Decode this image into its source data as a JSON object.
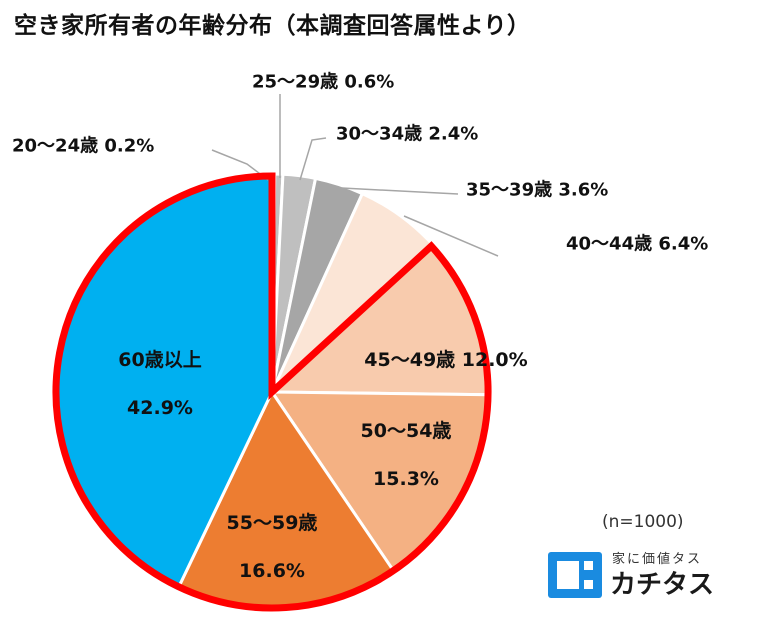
{
  "title": "空き家所有者の年齢分布（本調査回答属性より）",
  "note": "(n=1000)",
  "brand": {
    "tagline": "家に価値タス",
    "name": "カチタス",
    "color": "#1a8be0"
  },
  "chart_data": {
    "type": "pie",
    "title": "空き家所有者の年齢分布（本調査回答属性より）",
    "sample_size": "n=1000",
    "unit": "%",
    "slices": [
      {
        "label": "20～24歳",
        "value": 0.2,
        "display": "0.2%",
        "color": "#a6a6a6"
      },
      {
        "label": "25～29歳",
        "value": 0.6,
        "display": "0.6%",
        "color": "#bfbfbf"
      },
      {
        "label": "30～34歳",
        "value": 2.4,
        "display": "2.4%",
        "color": "#bfbfbf"
      },
      {
        "label": "35～39歳",
        "value": 3.6,
        "display": "3.6%",
        "color": "#a6a6a6"
      },
      {
        "label": "40～44歳",
        "value": 6.4,
        "display": "6.4%",
        "color": "#fbe5d6"
      },
      {
        "label": "45～49歳",
        "value": 12.0,
        "display": "12.0%",
        "color": "#f8cbad"
      },
      {
        "label": "50～54歳",
        "value": 15.3,
        "display": "15.3%",
        "color": "#f4b183"
      },
      {
        "label": "55～59歳",
        "value": 16.6,
        "display": "16.6%",
        "color": "#ed7d31"
      },
      {
        "label": "60歳以上",
        "value": 42.9,
        "display": "42.9%",
        "color": "#00b0f0"
      }
    ],
    "highlight": {
      "from_label": "45～49歳",
      "to_label": "60歳以上",
      "color": "#ff0000"
    }
  }
}
